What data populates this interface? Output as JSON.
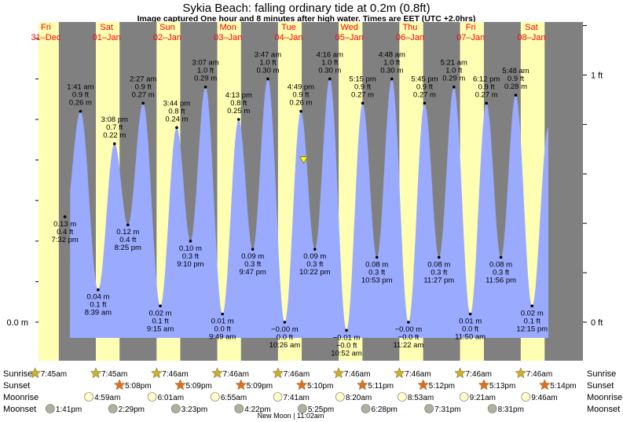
{
  "title": "Sykia Beach: falling  ordinary tide at 0.2m (0.8ft)",
  "subtitle": "Image captured One hour and 8 minutes after high water. Times are EET (UTC +2.0hrs)",
  "colors": {
    "night": "#808080",
    "day": "#ffffb3",
    "tide": "#99aaff",
    "day_label": "#ff0000",
    "current_marker": "#ffff00"
  },
  "chart_data": {
    "type": "area",
    "title": "Sykia Beach: falling  ordinary tide at 0.2m (0.8ft)",
    "y_unit_left": "m",
    "y_unit_right": "ft",
    "y_ticks_left": [
      "0.0 m"
    ],
    "y_ticks_right": [
      "0 ft",
      "1 ft"
    ],
    "days": [
      {
        "weekday": "Fri",
        "date": "31–Dec"
      },
      {
        "weekday": "Sat",
        "date": "01–Jan"
      },
      {
        "weekday": "Sun",
        "date": "02–Jan"
      },
      {
        "weekday": "Mon",
        "date": "03–Jan"
      },
      {
        "weekday": "Tue",
        "date": "04–Jan"
      },
      {
        "weekday": "Wed",
        "date": "05–Jan"
      },
      {
        "weekday": "Thu",
        "date": "06–Jan"
      },
      {
        "weekday": "Fri",
        "date": "07–Jan"
      },
      {
        "weekday": "Sat",
        "date": "08–Jan"
      }
    ],
    "tides": [
      {
        "day": 0,
        "time_h": 19.53,
        "height_m": 0.13,
        "m": "0.13 m",
        "ft": "0.4 ft",
        "label": "7:32 pm",
        "type": "low"
      },
      {
        "day": 1,
        "time_h": 1.68,
        "height_m": 0.26,
        "m": "0.26 m",
        "ft": "0.9 ft",
        "label": "1:41 am",
        "type": "high"
      },
      {
        "day": 1,
        "time_h": 8.65,
        "height_m": 0.04,
        "m": "0.04 m",
        "ft": "0.1 ft",
        "label": "8:39 am",
        "type": "low"
      },
      {
        "day": 1,
        "time_h": 15.13,
        "height_m": 0.22,
        "m": "0.22 m",
        "ft": "0.7 ft",
        "label": "3:08 pm",
        "type": "high"
      },
      {
        "day": 1,
        "time_h": 20.42,
        "height_m": 0.12,
        "m": "0.12 m",
        "ft": "0.4 ft",
        "label": "8:25 pm",
        "type": "low"
      },
      {
        "day": 2,
        "time_h": 2.45,
        "height_m": 0.27,
        "m": "0.27 m",
        "ft": "0.9 ft",
        "label": "2:27 am",
        "type": "high"
      },
      {
        "day": 2,
        "time_h": 9.25,
        "height_m": 0.02,
        "m": "0.02 m",
        "ft": "0.1 ft",
        "label": "9:15 am",
        "type": "low"
      },
      {
        "day": 2,
        "time_h": 15.73,
        "height_m": 0.24,
        "m": "0.24 m",
        "ft": "0.8 ft",
        "label": "3:44 pm",
        "type": "high"
      },
      {
        "day": 2,
        "time_h": 21.17,
        "height_m": 0.1,
        "m": "0.10 m",
        "ft": "0.3 ft",
        "label": "9:10 pm",
        "type": "low"
      },
      {
        "day": 3,
        "time_h": 3.12,
        "height_m": 0.29,
        "m": "0.29 m",
        "ft": "1.0 ft",
        "label": "3:07 am",
        "type": "high"
      },
      {
        "day": 3,
        "time_h": 9.82,
        "height_m": 0.01,
        "m": "0.01 m",
        "ft": "0.0 ft",
        "label": "9:49 am",
        "type": "low"
      },
      {
        "day": 3,
        "time_h": 16.22,
        "height_m": 0.25,
        "m": "0.25 m",
        "ft": "0.8 ft",
        "label": "4:13 pm",
        "type": "high"
      },
      {
        "day": 3,
        "time_h": 21.78,
        "height_m": 0.09,
        "m": "0.09 m",
        "ft": "0.3 ft",
        "label": "9:47 pm",
        "type": "low"
      },
      {
        "day": 4,
        "time_h": 3.78,
        "height_m": 0.3,
        "m": "0.30 m",
        "ft": "1.0 ft",
        "label": "3:47 am",
        "type": "high"
      },
      {
        "day": 4,
        "time_h": 10.43,
        "height_m": -0.0,
        "m": "−0.00 m",
        "ft": "0.0 ft",
        "label": "10:26 am",
        "type": "low"
      },
      {
        "day": 4,
        "time_h": 16.82,
        "height_m": 0.26,
        "m": "0.26 m",
        "ft": "0.9 ft",
        "label": "4:49 pm",
        "type": "high"
      },
      {
        "day": 4,
        "time_h": 22.37,
        "height_m": 0.09,
        "m": "0.09 m",
        "ft": "0.3 ft",
        "label": "10:22 pm",
        "type": "low"
      },
      {
        "day": 5,
        "time_h": 4.27,
        "height_m": 0.3,
        "m": "0.30 m",
        "ft": "1.0 ft",
        "label": "4:16 am",
        "type": "high"
      },
      {
        "day": 5,
        "time_h": 10.87,
        "height_m": -0.01,
        "m": "−0.01 m",
        "ft": "−0.0 ft",
        "label": "10:52 am",
        "type": "low"
      },
      {
        "day": 5,
        "time_h": 17.25,
        "height_m": 0.27,
        "m": "0.27 m",
        "ft": "0.9 ft",
        "label": "5:15 pm",
        "type": "high"
      },
      {
        "day": 5,
        "time_h": 22.88,
        "height_m": 0.08,
        "m": "0.08 m",
        "ft": "0.3 ft",
        "label": "10:53 pm",
        "type": "low"
      },
      {
        "day": 6,
        "time_h": 4.8,
        "height_m": 0.3,
        "m": "0.30 m",
        "ft": "1.0 ft",
        "label": "4:48 am",
        "type": "high"
      },
      {
        "day": 6,
        "time_h": 11.37,
        "height_m": -0.0,
        "m": "−0.00 m",
        "ft": "−0.0 ft",
        "label": "11:22 am",
        "type": "low"
      },
      {
        "day": 6,
        "time_h": 17.75,
        "height_m": 0.27,
        "m": "0.27 m",
        "ft": "0.9 ft",
        "label": "5:45 pm",
        "type": "high"
      },
      {
        "day": 6,
        "time_h": 23.45,
        "height_m": 0.08,
        "m": "0.08 m",
        "ft": "0.3 ft",
        "label": "11:27 pm",
        "type": "low"
      },
      {
        "day": 7,
        "time_h": 5.35,
        "height_m": 0.29,
        "m": "0.29 m",
        "ft": "1.0 ft",
        "label": "5:21 am",
        "type": "high"
      },
      {
        "day": 7,
        "time_h": 11.83,
        "height_m": 0.01,
        "m": "0.01 m",
        "ft": "0.0 ft",
        "label": "11:50 am",
        "type": "low"
      },
      {
        "day": 7,
        "time_h": 18.2,
        "height_m": 0.27,
        "m": "0.27 m",
        "ft": "0.9 ft",
        "label": "6:12 pm",
        "type": "high"
      },
      {
        "day": 7,
        "time_h": 23.93,
        "height_m": 0.08,
        "m": "0.08 m",
        "ft": "0.3 ft",
        "label": "11:56 pm",
        "type": "low"
      },
      {
        "day": 8,
        "time_h": 5.8,
        "height_m": 0.28,
        "m": "0.28 m",
        "ft": "0.9 ft",
        "label": "5:48 am",
        "type": "high"
      },
      {
        "day": 8,
        "time_h": 12.25,
        "height_m": 0.02,
        "m": "0.02 m",
        "ft": "0.1 ft",
        "label": "12:15 pm",
        "type": "low"
      }
    ],
    "current": {
      "day": 4,
      "time_h": 17.95,
      "height_m": 0.2
    }
  },
  "rows": {
    "sunrise": {
      "label": "Sunrise",
      "events": [
        {
          "day": 0,
          "time_h": 7.75,
          "text": "7:45am"
        },
        {
          "day": 1,
          "time_h": 7.75,
          "text": "7:45am"
        },
        {
          "day": 2,
          "time_h": 7.77,
          "text": "7:46am"
        },
        {
          "day": 3,
          "time_h": 7.77,
          "text": "7:46am"
        },
        {
          "day": 4,
          "time_h": 7.77,
          "text": "7:46am"
        },
        {
          "day": 5,
          "time_h": 7.77,
          "text": "7:46am"
        },
        {
          "day": 6,
          "time_h": 7.77,
          "text": "7:46am"
        },
        {
          "day": 7,
          "time_h": 7.77,
          "text": "7:46am"
        },
        {
          "day": 8,
          "time_h": 7.77,
          "text": "7:46am"
        }
      ]
    },
    "sunset": {
      "label": "Sunset",
      "events": [
        {
          "day": 1,
          "time_h": 17.13,
          "text": "5:08pm"
        },
        {
          "day": 2,
          "time_h": 17.15,
          "text": "5:09pm"
        },
        {
          "day": 3,
          "time_h": 17.15,
          "text": "5:09pm"
        },
        {
          "day": 4,
          "time_h": 17.17,
          "text": "5:10pm"
        },
        {
          "day": 5,
          "time_h": 17.18,
          "text": "5:11pm"
        },
        {
          "day": 6,
          "time_h": 17.2,
          "text": "5:12pm"
        },
        {
          "day": 7,
          "time_h": 17.22,
          "text": "5:13pm"
        },
        {
          "day": 8,
          "time_h": 17.23,
          "text": "5:14pm"
        }
      ]
    },
    "moonrise": {
      "label": "Moonrise",
      "events": [
        {
          "day": 1,
          "time_h": 4.98,
          "text": "4:59am"
        },
        {
          "day": 2,
          "time_h": 6.02,
          "text": "6:01am"
        },
        {
          "day": 3,
          "time_h": 6.92,
          "text": "6:55am"
        },
        {
          "day": 4,
          "time_h": 7.68,
          "text": "7:41am"
        },
        {
          "day": 5,
          "time_h": 8.33,
          "text": "8:20am"
        },
        {
          "day": 6,
          "time_h": 8.88,
          "text": "8:53am"
        },
        {
          "day": 7,
          "time_h": 9.35,
          "text": "9:21am"
        },
        {
          "day": 8,
          "time_h": 9.77,
          "text": "9:46am"
        }
      ]
    },
    "moonset": {
      "label": "Moonset",
      "events": [
        {
          "day": 0,
          "time_h": 13.68,
          "text": "1:41pm"
        },
        {
          "day": 1,
          "time_h": 14.48,
          "text": "2:29pm"
        },
        {
          "day": 2,
          "time_h": 15.38,
          "text": "3:23pm"
        },
        {
          "day": 3,
          "time_h": 16.37,
          "text": "4:22pm"
        },
        {
          "day": 4,
          "time_h": 17.42,
          "text": "5:25pm"
        },
        {
          "day": 5,
          "time_h": 18.47,
          "text": "6:28pm"
        },
        {
          "day": 6,
          "time_h": 19.52,
          "text": "7:31pm"
        },
        {
          "day": 7,
          "time_h": 20.52,
          "text": "8:31pm"
        }
      ]
    }
  },
  "new_moon_note": "New Moon | 11:02am"
}
